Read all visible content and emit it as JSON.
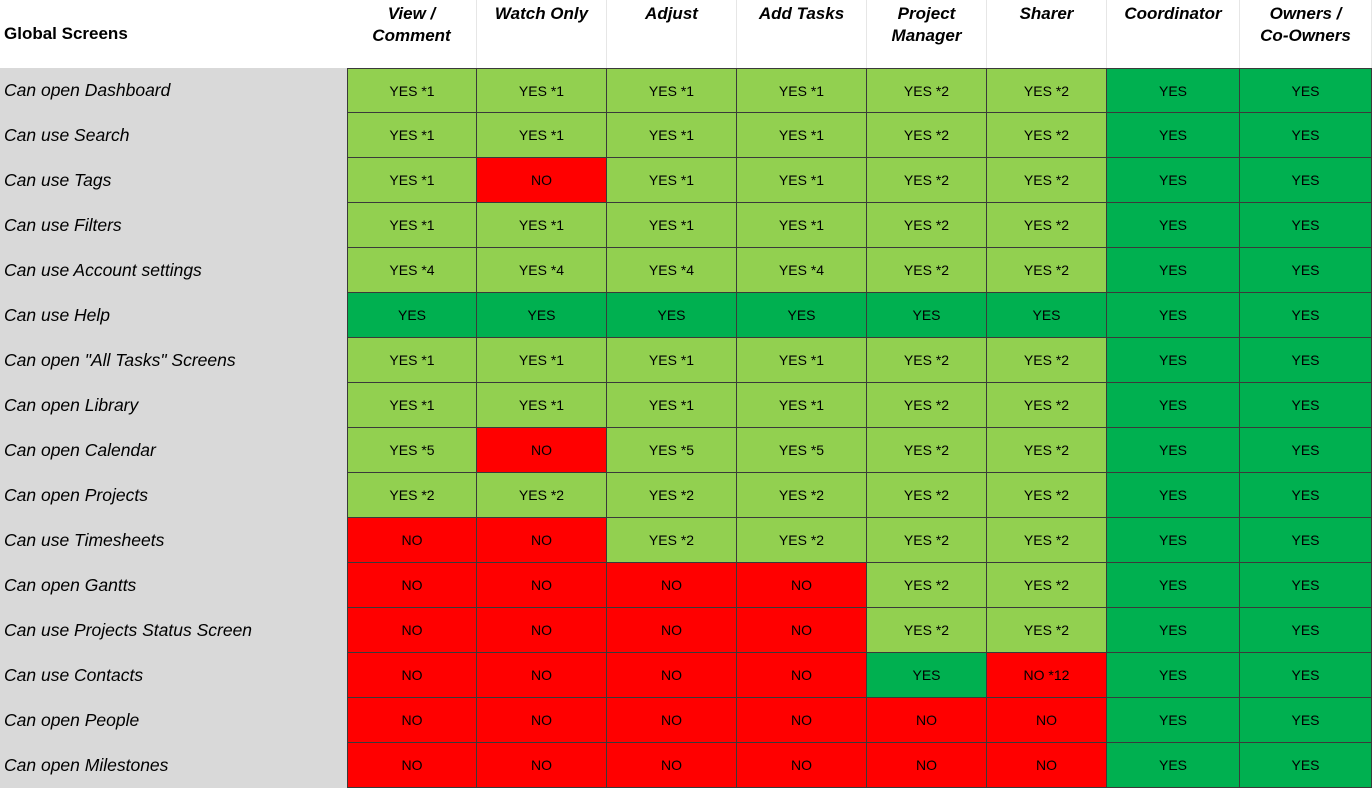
{
  "corner_label": "Global Screens",
  "columns": [
    "View /\nComment",
    "Watch Only",
    "Adjust",
    "Add Tasks",
    "Project\nManager",
    "Sharer",
    "Coordinator",
    "Owners /\nCo-Owners"
  ],
  "colors": {
    "light_green": "#92d050",
    "dark_green": "#00b050",
    "red": "#ff0000",
    "label_gray": "#d9d9d9"
  },
  "rows": [
    {
      "label": "Can open Dashboard",
      "cells": [
        [
          "YES *1",
          "lg"
        ],
        [
          "YES *1",
          "lg"
        ],
        [
          "YES *1",
          "lg"
        ],
        [
          "YES *1",
          "lg"
        ],
        [
          "YES *2",
          "lg"
        ],
        [
          "YES *2",
          "lg"
        ],
        [
          "YES",
          "dg"
        ],
        [
          "YES",
          "dg"
        ]
      ]
    },
    {
      "label": "Can use Search",
      "cells": [
        [
          "YES *1",
          "lg"
        ],
        [
          "YES *1",
          "lg"
        ],
        [
          "YES *1",
          "lg"
        ],
        [
          "YES *1",
          "lg"
        ],
        [
          "YES *2",
          "lg"
        ],
        [
          "YES *2",
          "lg"
        ],
        [
          "YES",
          "dg"
        ],
        [
          "YES",
          "dg"
        ]
      ]
    },
    {
      "label": "Can use Tags",
      "cells": [
        [
          "YES *1",
          "lg"
        ],
        [
          "NO",
          "r"
        ],
        [
          "YES *1",
          "lg"
        ],
        [
          "YES *1",
          "lg"
        ],
        [
          "YES *2",
          "lg"
        ],
        [
          "YES *2",
          "lg"
        ],
        [
          "YES",
          "dg"
        ],
        [
          "YES",
          "dg"
        ]
      ]
    },
    {
      "label": "Can use Filters",
      "cells": [
        [
          "YES *1",
          "lg"
        ],
        [
          "YES *1",
          "lg"
        ],
        [
          "YES *1",
          "lg"
        ],
        [
          "YES *1",
          "lg"
        ],
        [
          "YES *2",
          "lg"
        ],
        [
          "YES *2",
          "lg"
        ],
        [
          "YES",
          "dg"
        ],
        [
          "YES",
          "dg"
        ]
      ]
    },
    {
      "label": "Can use Account settings",
      "cells": [
        [
          "YES *4",
          "lg"
        ],
        [
          "YES *4",
          "lg"
        ],
        [
          "YES *4",
          "lg"
        ],
        [
          "YES *4",
          "lg"
        ],
        [
          "YES *2",
          "lg"
        ],
        [
          "YES *2",
          "lg"
        ],
        [
          "YES",
          "dg"
        ],
        [
          "YES",
          "dg"
        ]
      ]
    },
    {
      "label": "Can use Help",
      "cells": [
        [
          "YES",
          "dg"
        ],
        [
          "YES",
          "dg"
        ],
        [
          "YES",
          "dg"
        ],
        [
          "YES",
          "dg"
        ],
        [
          "YES",
          "dg"
        ],
        [
          "YES",
          "dg"
        ],
        [
          "YES",
          "dg"
        ],
        [
          "YES",
          "dg"
        ]
      ]
    },
    {
      "label": "Can open \"All Tasks\" Screens",
      "cells": [
        [
          "YES *1",
          "lg"
        ],
        [
          "YES *1",
          "lg"
        ],
        [
          "YES *1",
          "lg"
        ],
        [
          "YES *1",
          "lg"
        ],
        [
          "YES *2",
          "lg"
        ],
        [
          "YES *2",
          "lg"
        ],
        [
          "YES",
          "dg"
        ],
        [
          "YES",
          "dg"
        ]
      ]
    },
    {
      "label": "Can open Library",
      "cells": [
        [
          "YES *1",
          "lg"
        ],
        [
          "YES *1",
          "lg"
        ],
        [
          "YES *1",
          "lg"
        ],
        [
          "YES *1",
          "lg"
        ],
        [
          "YES *2",
          "lg"
        ],
        [
          "YES *2",
          "lg"
        ],
        [
          "YES",
          "dg"
        ],
        [
          "YES",
          "dg"
        ]
      ]
    },
    {
      "label": "Can open Calendar",
      "cells": [
        [
          "YES *5",
          "lg"
        ],
        [
          "NO",
          "r"
        ],
        [
          "YES *5",
          "lg"
        ],
        [
          "YES *5",
          "lg"
        ],
        [
          "YES *2",
          "lg"
        ],
        [
          "YES *2",
          "lg"
        ],
        [
          "YES",
          "dg"
        ],
        [
          "YES",
          "dg"
        ]
      ]
    },
    {
      "label": "Can open Projects",
      "cells": [
        [
          "YES *2",
          "lg"
        ],
        [
          "YES *2",
          "lg"
        ],
        [
          "YES *2",
          "lg"
        ],
        [
          "YES *2",
          "lg"
        ],
        [
          "YES *2",
          "lg"
        ],
        [
          "YES *2",
          "lg"
        ],
        [
          "YES",
          "dg"
        ],
        [
          "YES",
          "dg"
        ]
      ]
    },
    {
      "label": "Can use Timesheets",
      "cells": [
        [
          "NO",
          "r"
        ],
        [
          "NO",
          "r"
        ],
        [
          "YES *2",
          "lg"
        ],
        [
          "YES *2",
          "lg"
        ],
        [
          "YES *2",
          "lg"
        ],
        [
          "YES *2",
          "lg"
        ],
        [
          "YES",
          "dg"
        ],
        [
          "YES",
          "dg"
        ]
      ]
    },
    {
      "label": "Can open Gantts",
      "cells": [
        [
          "NO",
          "r"
        ],
        [
          "NO",
          "r"
        ],
        [
          "NO",
          "r"
        ],
        [
          "NO",
          "r"
        ],
        [
          "YES *2",
          "lg"
        ],
        [
          "YES *2",
          "lg"
        ],
        [
          "YES",
          "dg"
        ],
        [
          "YES",
          "dg"
        ]
      ]
    },
    {
      "label": "Can use Projects Status Screen",
      "cells": [
        [
          "NO",
          "r"
        ],
        [
          "NO",
          "r"
        ],
        [
          "NO",
          "r"
        ],
        [
          "NO",
          "r"
        ],
        [
          "YES *2",
          "lg"
        ],
        [
          "YES *2",
          "lg"
        ],
        [
          "YES",
          "dg"
        ],
        [
          "YES",
          "dg"
        ]
      ]
    },
    {
      "label": "Can use Contacts",
      "cells": [
        [
          "NO",
          "r"
        ],
        [
          "NO",
          "r"
        ],
        [
          "NO",
          "r"
        ],
        [
          "NO",
          "r"
        ],
        [
          "YES",
          "dg"
        ],
        [
          "NO *12",
          "r"
        ],
        [
          "YES",
          "dg"
        ],
        [
          "YES",
          "dg"
        ]
      ]
    },
    {
      "label": "Can open People",
      "cells": [
        [
          "NO",
          "r"
        ],
        [
          "NO",
          "r"
        ],
        [
          "NO",
          "r"
        ],
        [
          "NO",
          "r"
        ],
        [
          "NO",
          "r"
        ],
        [
          "NO",
          "r"
        ],
        [
          "YES",
          "dg"
        ],
        [
          "YES",
          "dg"
        ]
      ]
    },
    {
      "label": "Can open Milestones",
      "cells": [
        [
          "NO",
          "r"
        ],
        [
          "NO",
          "r"
        ],
        [
          "NO",
          "r"
        ],
        [
          "NO",
          "r"
        ],
        [
          "NO",
          "r"
        ],
        [
          "NO",
          "r"
        ],
        [
          "YES",
          "dg"
        ],
        [
          "YES",
          "dg"
        ]
      ]
    }
  ]
}
